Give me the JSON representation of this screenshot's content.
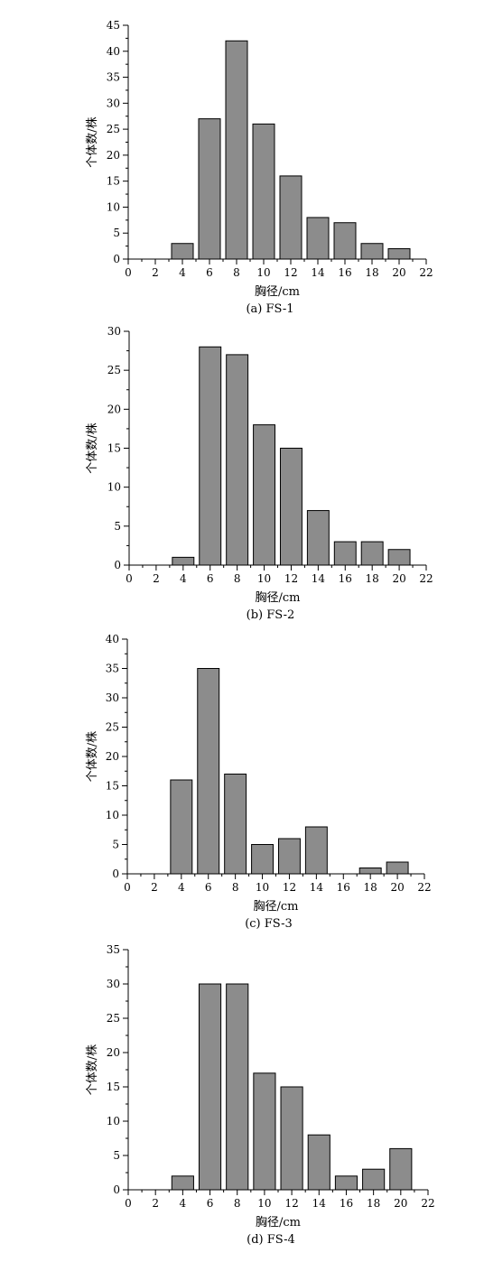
{
  "chart_data": [
    {
      "type": "bar",
      "caption": "(a) FS-1",
      "xlabel": "胸径/cm",
      "ylabel": "个体数/株",
      "xlim": [
        0,
        22
      ],
      "ylim": [
        0,
        45
      ],
      "x_ticks": [
        0,
        2,
        4,
        6,
        8,
        10,
        12,
        14,
        16,
        18,
        20,
        22
      ],
      "y_ticks": [
        0,
        5,
        10,
        15,
        20,
        25,
        30,
        35,
        40,
        45
      ],
      "x": [
        4,
        6,
        8,
        10,
        12,
        14,
        16,
        18,
        20
      ],
      "values": [
        3,
        27,
        42,
        26,
        16,
        8,
        7,
        3,
        2
      ],
      "bar_width": 1.6
    },
    {
      "type": "bar",
      "caption": "(b) FS-2",
      "xlabel": "胸径/cm",
      "ylabel": "个体数/株",
      "xlim": [
        0,
        22
      ],
      "ylim": [
        0,
        30
      ],
      "x_ticks": [
        0,
        2,
        4,
        6,
        8,
        10,
        12,
        14,
        16,
        18,
        20,
        22
      ],
      "y_ticks": [
        0,
        5,
        10,
        15,
        20,
        25,
        30
      ],
      "x": [
        4,
        6,
        8,
        10,
        12,
        14,
        16,
        18,
        20
      ],
      "values": [
        1,
        28,
        27,
        18,
        15,
        7,
        3,
        3,
        2
      ],
      "bar_width": 1.6
    },
    {
      "type": "bar",
      "caption": "(c) FS-3",
      "xlabel": "胸径/cm",
      "ylabel": "个体数/株",
      "xlim": [
        0,
        22
      ],
      "ylim": [
        0,
        40
      ],
      "x_ticks": [
        0,
        2,
        4,
        6,
        8,
        10,
        12,
        14,
        16,
        18,
        20,
        22
      ],
      "y_ticks": [
        0,
        5,
        10,
        15,
        20,
        25,
        30,
        35,
        40
      ],
      "x": [
        4,
        6,
        8,
        10,
        12,
        14,
        18,
        20
      ],
      "values": [
        16,
        35,
        17,
        5,
        6,
        8,
        1,
        2
      ],
      "bar_width": 1.6
    },
    {
      "type": "bar",
      "caption": "(d) FS-4",
      "xlabel": "胸径/cm",
      "ylabel": "个体数/株",
      "xlim": [
        0,
        22
      ],
      "ylim": [
        0,
        35
      ],
      "x_ticks": [
        0,
        2,
        4,
        6,
        8,
        10,
        12,
        14,
        16,
        18,
        20,
        22
      ],
      "y_ticks": [
        0,
        5,
        10,
        15,
        20,
        25,
        30,
        35
      ],
      "x": [
        4,
        6,
        8,
        10,
        12,
        14,
        16,
        18,
        20
      ],
      "values": [
        2,
        30,
        30,
        17,
        15,
        8,
        2,
        3,
        6
      ],
      "bar_width": 1.6
    }
  ]
}
